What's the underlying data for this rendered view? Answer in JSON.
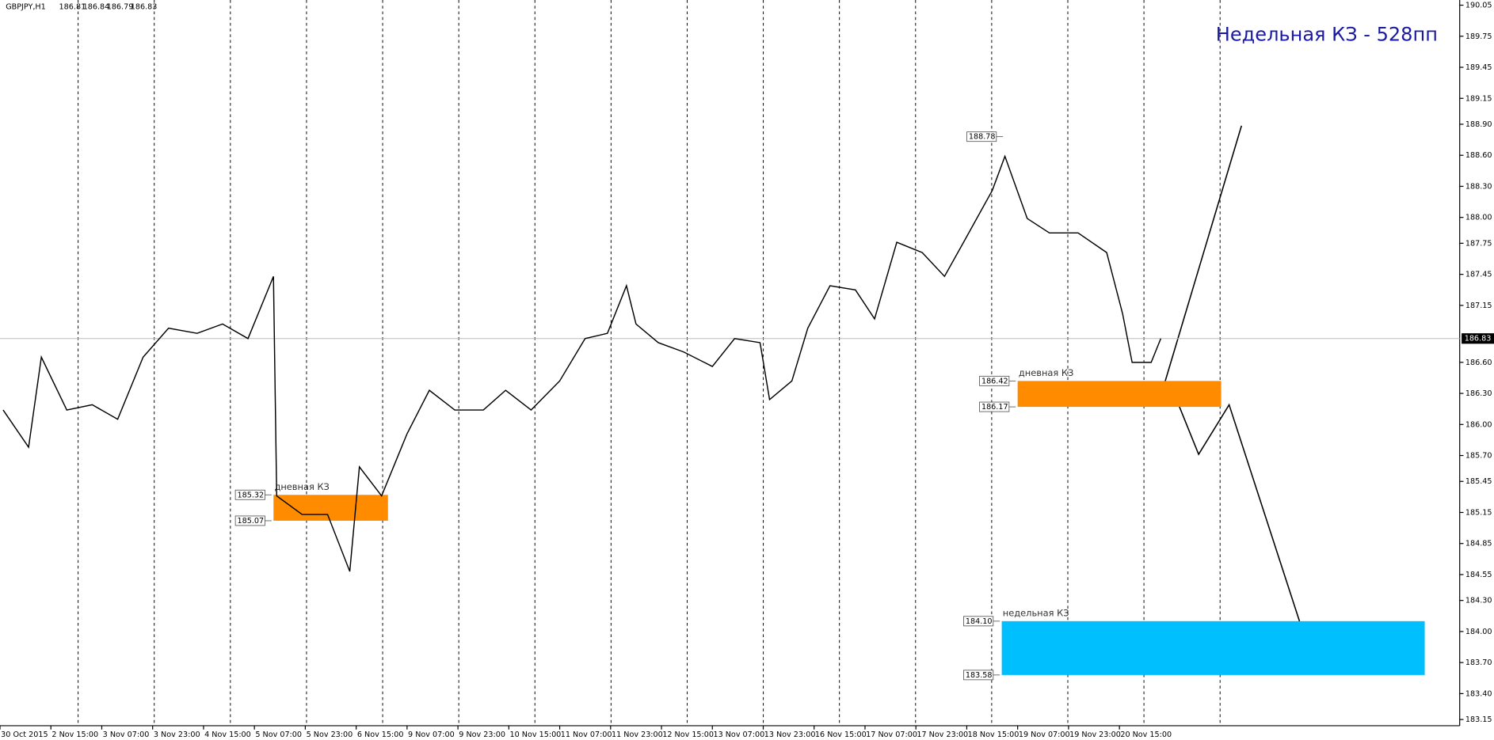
{
  "chart_data": {
    "type": "line",
    "symbol": "GBPJPY,H1",
    "ohlc": [
      186.81,
      186.84,
      186.79,
      186.83
    ],
    "annotation": "Недельная КЗ - 528пп",
    "color": "#000000",
    "x": [
      1,
      9,
      13,
      21,
      29,
      37,
      45,
      53,
      62,
      70,
      78,
      86,
      87,
      95,
      103,
      110,
      113,
      120,
      128,
      135,
      143,
      152,
      159,
      167,
      176,
      184,
      191,
      197,
      200,
      207,
      215,
      224,
      231,
      239,
      242,
      249,
      254,
      261,
      269,
      275,
      282,
      290,
      297,
      303,
      312,
      316,
      323,
      330,
      339,
      348,
      353,
      356,
      362,
      365
    ],
    "values": [
      186.14,
      185.78,
      186.65,
      186.14,
      186.19,
      186.05,
      186.65,
      186.93,
      186.88,
      186.97,
      186.83,
      187.43,
      185.31,
      185.13,
      185.13,
      184.58,
      185.59,
      185.31,
      185.91,
      186.33,
      186.14,
      186.14,
      186.33,
      186.14,
      186.42,
      186.83,
      186.88,
      187.34,
      186.97,
      186.79,
      186.7,
      186.56,
      186.83,
      186.79,
      186.24,
      186.42,
      186.93,
      187.34,
      187.3,
      187.02,
      187.76,
      187.66,
      187.43,
      187.76,
      188.26,
      188.59,
      187.99,
      187.85,
      187.85,
      187.66,
      187.07,
      186.6,
      186.6,
      186.83
    ],
    "xlim": [
      0,
      459
    ],
    "ylim": [
      183.09,
      190.1
    ],
    "xticks": [
      {
        "value": 0,
        "label": "30 Oct 2015"
      },
      {
        "value": 16,
        "label": "2 Nov 15:00"
      },
      {
        "value": 32,
        "label": "3 Nov 07:00"
      },
      {
        "value": 48,
        "label": "3 Nov 23:00"
      },
      {
        "value": 64,
        "label": "4 Nov 15:00"
      },
      {
        "value": 80,
        "label": "5 Nov 07:00"
      },
      {
        "value": 96,
        "label": "5 Nov 23:00"
      },
      {
        "value": 112,
        "label": "6 Nov 15:00"
      },
      {
        "value": 128,
        "label": "9 Nov 07:00"
      },
      {
        "value": 144,
        "label": "9 Nov 23:00"
      },
      {
        "value": 160,
        "label": "10 Nov 15:00"
      },
      {
        "value": 176,
        "label": "11 Nov 07:00"
      },
      {
        "value": 192,
        "label": "11 Nov 23:00"
      },
      {
        "value": 208,
        "label": "12 Nov 15:00"
      },
      {
        "value": 224,
        "label": "13 Nov 07:00"
      },
      {
        "value": 240,
        "label": "13 Nov 23:00"
      },
      {
        "value": 256,
        "label": "16 Nov 15:00"
      },
      {
        "value": 272,
        "label": "17 Nov 07:00"
      },
      {
        "value": 288,
        "label": "17 Nov 23:00"
      },
      {
        "value": 304,
        "label": "18 Nov 15:00"
      },
      {
        "value": 320,
        "label": "19 Nov 07:00"
      },
      {
        "value": 336,
        "label": "19 Nov 23:00"
      },
      {
        "value": 352,
        "label": "20 Nov 15:00"
      }
    ],
    "yticks": [
      190.05,
      189.75,
      189.45,
      189.15,
      {
        "value": 188.9,
        "label": "188.90"
      },
      {
        "value": 188.6,
        "label": "188.60"
      },
      {
        "value": 188.3,
        "label": "188.30"
      },
      {
        "value": 188,
        "label": "188.00"
      },
      187.75,
      187.45,
      187.15,
      {
        "value": 186.6,
        "label": "186.60"
      },
      {
        "value": 186.3,
        "label": "186.30"
      },
      {
        "value": 186,
        "label": "186.00"
      },
      {
        "value": 185.7,
        "label": "185.70"
      },
      185.45,
      185.15,
      184.85,
      184.55,
      {
        "value": 184.3,
        "label": "184.30"
      },
      {
        "value": 184,
        "label": "184.00"
      },
      {
        "value": 183.7,
        "label": "183.70"
      },
      {
        "value": 183.4,
        "label": "183.40"
      },
      183.15
    ],
    "last": 186.83,
    "max_label": 188.78,
    "max_x": 316,
    "zones": [
      {
        "label": "дневная КЗ",
        "values": [
          185.32,
          185.07
        ],
        "x": [
          86,
          122
        ],
        "color": "#ff8c00"
      },
      {
        "label": "дневная КЗ",
        "values": [
          186.42,
          186.17
        ],
        "x": [
          320,
          384
        ],
        "color": "#ff8c00"
      },
      {
        "label": "недельная КЗ",
        "values": [
          184.1,
          183.58
        ],
        "x": [
          315,
          448
        ],
        "color": "#00bfff",
        "value_labels": [
          "184.10",
          "183.58"
        ]
      }
    ]
  }
}
